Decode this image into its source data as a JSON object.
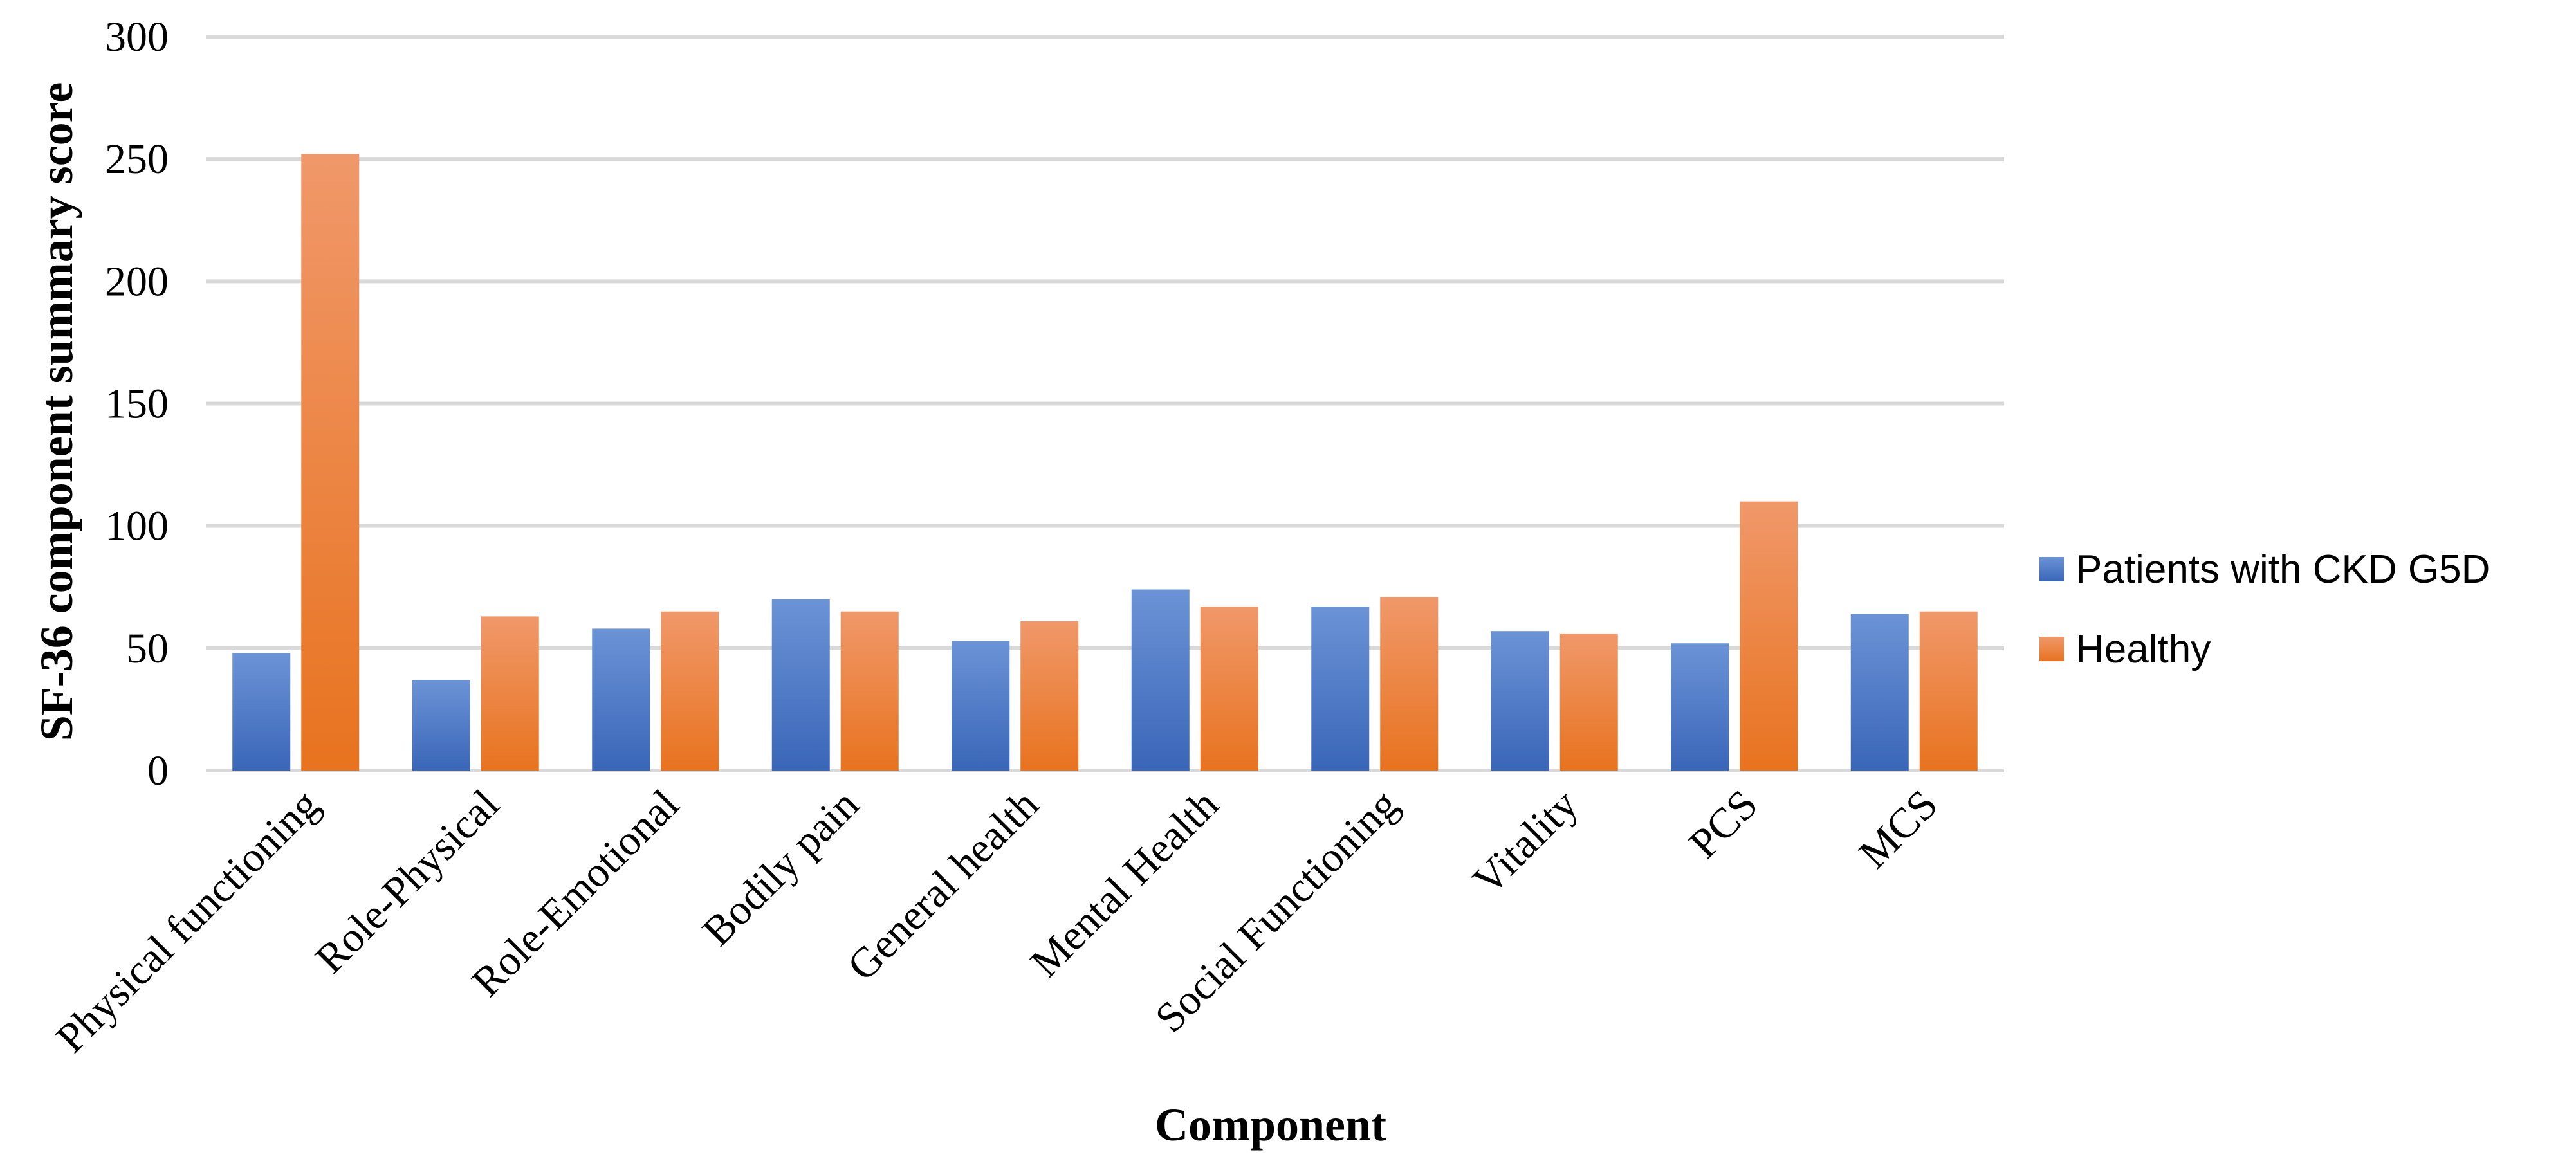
{
  "chart_data": {
    "type": "bar",
    "title": "",
    "xlabel": "Component",
    "ylabel": "SF-36 component summary score",
    "ylim": [
      0,
      300
    ],
    "yticks": [
      "0",
      "50",
      "100",
      "150",
      "200",
      "250",
      "300"
    ],
    "categories": [
      "Physical functioning",
      "Role-Physical",
      "Role-Emotional",
      "Bodily pain",
      "General health",
      "Mental Health",
      "Social Functioning",
      "Vitality",
      "PCS",
      "MCS"
    ],
    "series": [
      {
        "name": "Patients with CKD G5D",
        "color": "#4472c4",
        "values": [
          48,
          37,
          58,
          70,
          53,
          74,
          67,
          57,
          52,
          64
        ]
      },
      {
        "name": "Healthy",
        "color": "#ed7d31",
        "values": [
          252,
          63,
          65,
          65,
          61,
          67,
          71,
          56,
          110,
          65
        ]
      }
    ],
    "grid": true,
    "legend": "right"
  }
}
